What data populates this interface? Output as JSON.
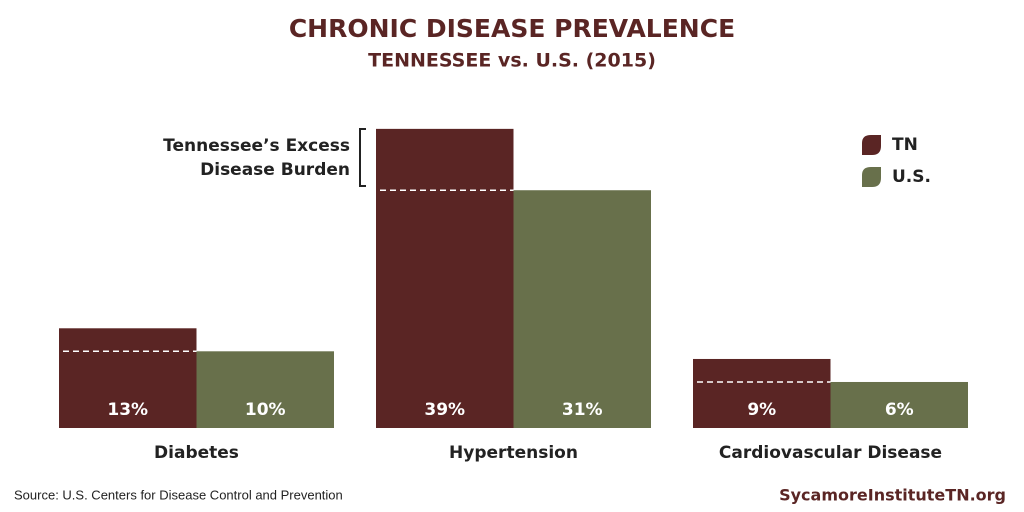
{
  "chart_data": {
    "type": "bar",
    "title": "CHRONIC DISEASE PREVALENCE",
    "subtitle": "TENNESSEE vs. U.S. (2015)",
    "categories": [
      "Diabetes",
      "Hypertension",
      "Cardiovascular Disease"
    ],
    "series": [
      {
        "name": "TN",
        "color": "#5a2524",
        "values": [
          13,
          39,
          9
        ],
        "value_labels": [
          "13%",
          "39%",
          "9%"
        ]
      },
      {
        "name": "U.S.",
        "color": "#68704b",
        "values": [
          10,
          31,
          6
        ],
        "value_labels": [
          "10%",
          "31%",
          "6%"
        ]
      }
    ],
    "annotation": [
      "Tennessee’s Excess",
      "Disease Burden"
    ],
    "source": "Source: U.S. Centers for Disease Control and Prevention",
    "website": "SycamoreInstituteTN.org"
  }
}
